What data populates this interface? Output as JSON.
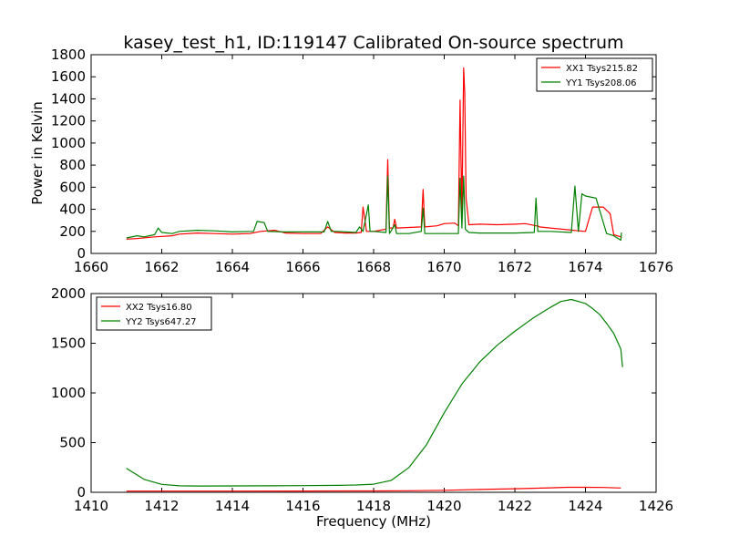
{
  "chart_data": [
    {
      "type": "line",
      "title": "kasey_test_h1, ID:119147 Calibrated On-source spectrum",
      "xlabel": "",
      "ylabel": "Power in Kelvin",
      "xlim": [
        1660,
        1676
      ],
      "ylim": [
        0,
        1800
      ],
      "xticks": [
        "1660",
        "1662",
        "1664",
        "1666",
        "1668",
        "1670",
        "1672",
        "1674",
        "1676"
      ],
      "yticks": [
        "0",
        "200",
        "400",
        "600",
        "800",
        "1000",
        "1200",
        "1400",
        "1600",
        "1800"
      ],
      "legend_position": "top-right",
      "series": [
        {
          "name": "XX1 Tsys215.82",
          "color": "#ff0000",
          "x": [
            1661.0,
            1661.3,
            1661.8,
            1662.3,
            1662.5,
            1663.0,
            1663.5,
            1664.0,
            1664.5,
            1664.8,
            1665.2,
            1665.5,
            1666.0,
            1666.5,
            1666.7,
            1666.9,
            1667.2,
            1667.5,
            1667.65,
            1667.7,
            1667.8,
            1667.95,
            1668.0,
            1668.35,
            1668.4,
            1668.45,
            1668.55,
            1668.6,
            1668.65,
            1669.0,
            1669.35,
            1669.4,
            1669.45,
            1669.8,
            1670.0,
            1670.3,
            1670.4,
            1670.45,
            1670.5,
            1670.55,
            1670.58,
            1670.62,
            1670.7,
            1671.0,
            1671.5,
            1672.0,
            1672.3,
            1672.6,
            1672.65,
            1672.7,
            1673.0,
            1673.5,
            1673.8,
            1674.0,
            1674.2,
            1674.5,
            1674.7,
            1674.8,
            1675.0,
            1675.02
          ],
          "y": [
            130,
            135,
            150,
            160,
            175,
            185,
            180,
            175,
            180,
            200,
            210,
            185,
            180,
            180,
            240,
            190,
            185,
            185,
            190,
            420,
            200,
            200,
            200,
            220,
            850,
            230,
            230,
            310,
            230,
            235,
            240,
            580,
            240,
            250,
            270,
            275,
            250,
            1390,
            350,
            1680,
            1450,
            500,
            260,
            265,
            260,
            265,
            270,
            250,
            250,
            240,
            230,
            215,
            205,
            200,
            420,
            420,
            360,
            170,
            150,
            140
          ]
        },
        {
          "name": "YY1 Tsys208.06",
          "color": "#008000",
          "x": [
            1661.0,
            1661.3,
            1661.5,
            1661.8,
            1661.9,
            1662.0,
            1662.3,
            1662.5,
            1663.0,
            1663.5,
            1664.0,
            1664.6,
            1664.7,
            1664.9,
            1665.0,
            1665.5,
            1666.0,
            1666.6,
            1666.7,
            1666.8,
            1667.0,
            1667.5,
            1667.6,
            1667.7,
            1667.85,
            1667.9,
            1668.0,
            1668.35,
            1668.4,
            1668.45,
            1668.6,
            1668.65,
            1669.0,
            1669.35,
            1669.4,
            1669.45,
            1670.0,
            1670.4,
            1670.45,
            1670.5,
            1670.55,
            1670.6,
            1670.7,
            1671.0,
            1672.0,
            1672.55,
            1672.6,
            1672.65,
            1673.0,
            1673.6,
            1673.7,
            1673.8,
            1673.9,
            1674.0,
            1674.3,
            1674.6,
            1674.8,
            1675.0,
            1675.02
          ],
          "y": [
            140,
            160,
            150,
            170,
            230,
            190,
            180,
            200,
            210,
            205,
            195,
            200,
            290,
            280,
            200,
            195,
            195,
            195,
            290,
            200,
            200,
            190,
            240,
            200,
            440,
            200,
            200,
            190,
            700,
            180,
            260,
            180,
            180,
            200,
            410,
            180,
            180,
            180,
            680,
            230,
            700,
            220,
            190,
            185,
            185,
            190,
            500,
            200,
            200,
            190,
            610,
            200,
            540,
            520,
            500,
            180,
            160,
            120,
            190
          ]
        }
      ]
    },
    {
      "type": "line",
      "title": "",
      "xlabel": "Frequency (MHz)",
      "ylabel": "",
      "xlim": [
        1410,
        1426
      ],
      "ylim": [
        0,
        2000
      ],
      "xticks": [
        "1410",
        "1412",
        "1414",
        "1416",
        "1418",
        "1420",
        "1422",
        "1424",
        "1426"
      ],
      "yticks": [
        "0",
        "500",
        "1000",
        "1500",
        "2000"
      ],
      "legend_position": "top-left",
      "series": [
        {
          "name": "XX2 Tsys16.80",
          "color": "#ff0000",
          "x": [
            1411,
            1412,
            1414,
            1416,
            1418,
            1419,
            1420,
            1421,
            1422,
            1423,
            1423.5,
            1424,
            1424.5,
            1425
          ],
          "y": [
            12,
            12,
            12,
            13,
            14,
            16,
            20,
            28,
            36,
            45,
            50,
            50,
            49,
            43
          ]
        },
        {
          "name": "YY2 Tsys647.27",
          "color": "#008000",
          "x": [
            1411,
            1411.5,
            1412,
            1412.5,
            1413,
            1414,
            1415,
            1416,
            1417,
            1417.5,
            1418,
            1418.5,
            1419,
            1419.5,
            1420,
            1420.5,
            1421,
            1421.5,
            1422,
            1422.5,
            1423,
            1423.3,
            1423.6,
            1424,
            1424.2,
            1424.4,
            1424.6,
            1424.8,
            1425,
            1425.05
          ],
          "y": [
            240,
            130,
            80,
            65,
            63,
            64,
            65,
            67,
            70,
            73,
            82,
            120,
            250,
            480,
            800,
            1090,
            1310,
            1480,
            1620,
            1750,
            1860,
            1920,
            1940,
            1900,
            1850,
            1790,
            1700,
            1600,
            1440,
            1260
          ]
        }
      ]
    }
  ]
}
